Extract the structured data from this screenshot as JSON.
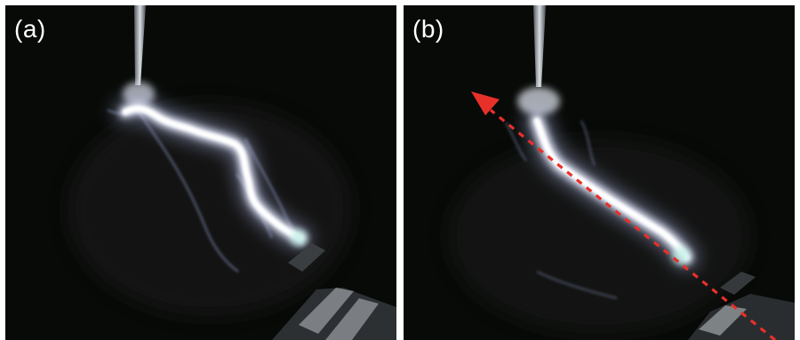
{
  "figure": {
    "panels": [
      {
        "id": "a",
        "label": "(a)"
      },
      {
        "id": "b",
        "label": "(b)"
      }
    ]
  },
  "colors": {
    "background": "#080a08",
    "discharge": "#ffffff",
    "glow": "#cfd8ff",
    "arrow": "#e8302a",
    "separator": "#ffffff"
  },
  "icons": [
    "electrode",
    "plasma-discharge",
    "direction-arrow",
    "metal-holder"
  ]
}
